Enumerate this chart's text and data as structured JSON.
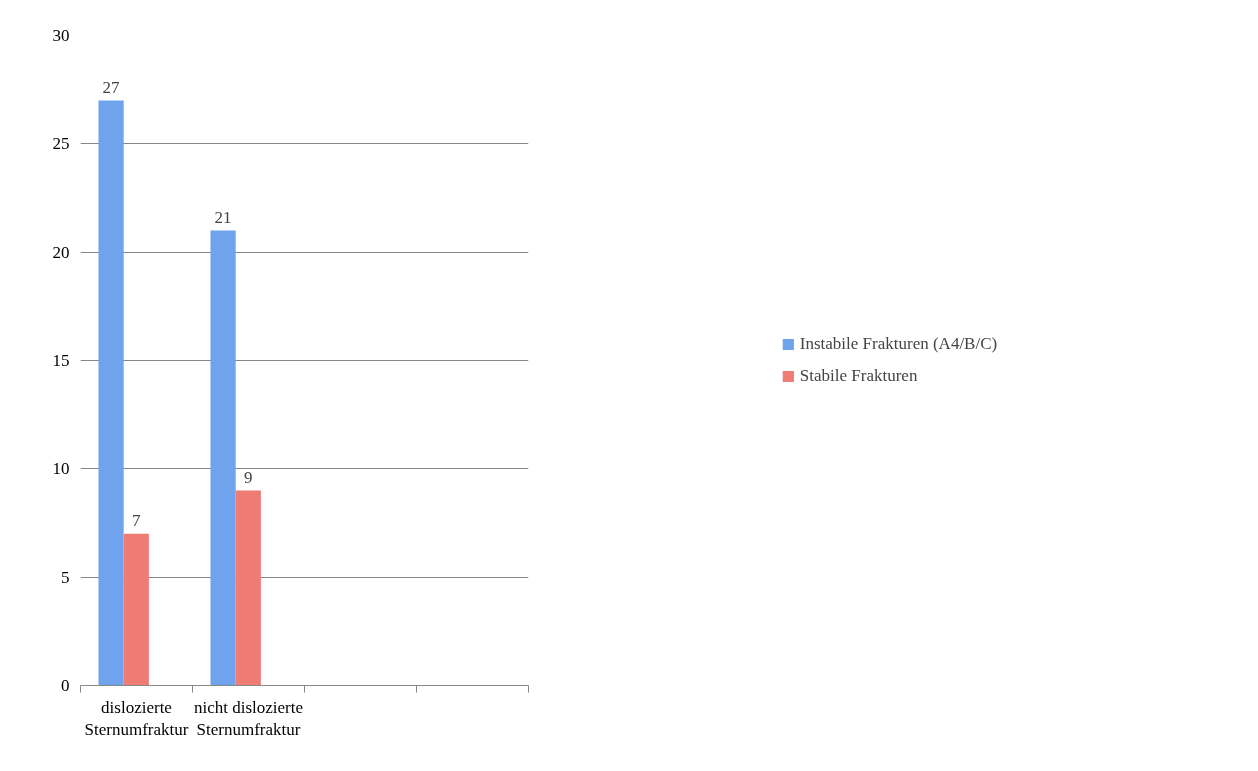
{
  "chart_data": {
    "type": "bar",
    "categories": [
      "dislozierte Sternumfraktur",
      "nicht dislozierte Sternumfraktur",
      null,
      null
    ],
    "series": [
      {
        "name": "Instabile Frakturen (A4/B/C)",
        "color": "#6fa3ee",
        "values": [
          27,
          21,
          null,
          null
        ]
      },
      {
        "name": "Stabile Frakturen",
        "color": "#ee7b74",
        "values": [
          7,
          9,
          null,
          null
        ]
      }
    ],
    "ylim": [
      0,
      30
    ],
    "yticks": [
      0,
      5,
      10,
      15,
      20,
      25,
      30
    ],
    "grid": "y",
    "legend": "right",
    "data_labels": true
  }
}
